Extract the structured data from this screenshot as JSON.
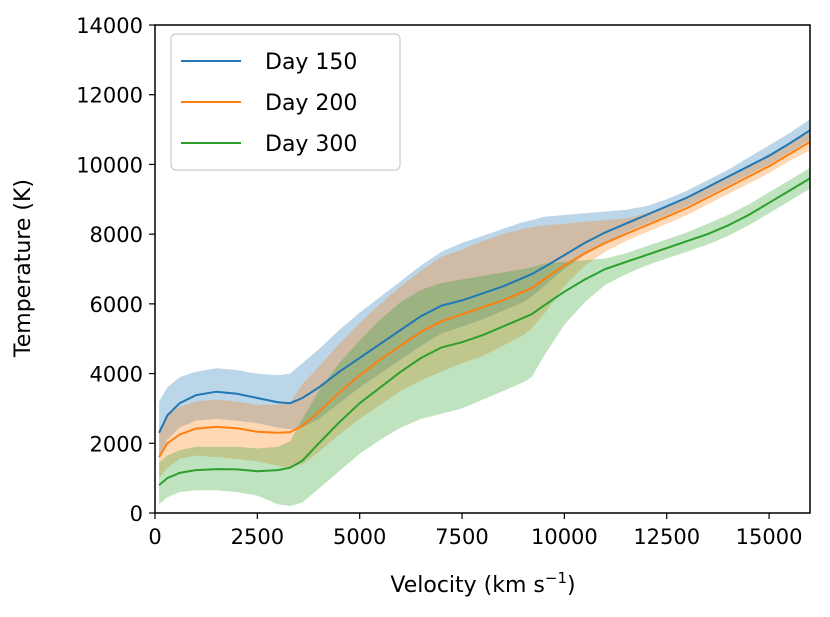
{
  "chart_data": {
    "type": "line",
    "title": "",
    "xlabel": "Velocity (km s",
    "xlabel_sup": "−1",
    "xlabel_close": ")",
    "ylabel": "Temperature (K)",
    "xlim": [
      0,
      16000
    ],
    "ylim": [
      0,
      14000
    ],
    "xticks": [
      0,
      2500,
      5000,
      7500,
      10000,
      12500,
      15000
    ],
    "yticks": [
      0,
      2000,
      4000,
      6000,
      8000,
      10000,
      12000,
      14000
    ],
    "legend_position": "top-left",
    "x": [
      100,
      300,
      600,
      1000,
      1500,
      2000,
      2500,
      3000,
      3300,
      3600,
      4000,
      4500,
      5000,
      5500,
      6000,
      6500,
      7000,
      7500,
      8000,
      8500,
      9000,
      9200,
      9500,
      10000,
      10500,
      11000,
      11500,
      12000,
      12500,
      13000,
      13500,
      14000,
      14500,
      15000,
      15500,
      16000
    ],
    "series": [
      {
        "name": "Day 150",
        "color": "#1f77b4",
        "values": [
          2300,
          2800,
          3150,
          3380,
          3480,
          3420,
          3300,
          3180,
          3150,
          3300,
          3600,
          4050,
          4450,
          4850,
          5250,
          5650,
          5950,
          6100,
          6300,
          6500,
          6750,
          6850,
          7050,
          7400,
          7750,
          8050,
          8300,
          8550,
          8800,
          9050,
          9350,
          9650,
          9950,
          10250,
          10600,
          10980
        ],
        "lower": [
          1600,
          2100,
          2450,
          2650,
          2700,
          2650,
          2580,
          2450,
          2400,
          2450,
          2700,
          3150,
          3600,
          4000,
          4400,
          4800,
          5150,
          5350,
          5550,
          5800,
          6050,
          6200,
          6500,
          7000,
          7400,
          7750,
          8050,
          8300,
          8550,
          8800,
          9100,
          9400,
          9700,
          10000,
          10350,
          10700
        ],
        "upper": [
          3200,
          3600,
          3900,
          4050,
          4150,
          4100,
          4000,
          3950,
          4000,
          4300,
          4700,
          5250,
          5750,
          6200,
          6650,
          7100,
          7500,
          7750,
          7950,
          8150,
          8350,
          8400,
          8500,
          8550,
          8600,
          8650,
          8700,
          8800,
          9000,
          9250,
          9550,
          9850,
          10200,
          10550,
          10900,
          11300
        ]
      },
      {
        "name": "Day 200",
        "color": "#ff7f0e",
        "values": [
          1600,
          2000,
          2250,
          2420,
          2470,
          2430,
          2330,
          2300,
          2320,
          2500,
          2900,
          3450,
          3950,
          4400,
          4800,
          5200,
          5500,
          5700,
          5900,
          6100,
          6350,
          6450,
          6700,
          7100,
          7450,
          7750,
          8000,
          8250,
          8500,
          8750,
          9050,
          9350,
          9650,
          9950,
          10300,
          10650
        ],
        "lower": [
          1000,
          1300,
          1550,
          1650,
          1600,
          1550,
          1480,
          1350,
          1300,
          1400,
          1750,
          2250,
          2700,
          3100,
          3500,
          3800,
          4050,
          4300,
          4500,
          4800,
          5100,
          5300,
          5700,
          6500,
          7100,
          7500,
          7800,
          8050,
          8300,
          8550,
          8850,
          9150,
          9450,
          9750,
          10100,
          10400
        ],
        "upper": [
          2400,
          2800,
          3050,
          3200,
          3250,
          3200,
          3100,
          3100,
          3150,
          3700,
          4200,
          4850,
          5450,
          6000,
          6500,
          6950,
          7350,
          7550,
          7800,
          8000,
          8150,
          8200,
          8250,
          8300,
          8350,
          8400,
          8450,
          8600,
          8800,
          9050,
          9350,
          9650,
          9950,
          10250,
          10600,
          10950
        ]
      },
      {
        "name": "Day 300",
        "color": "#2ca02c",
        "values": [
          800,
          1000,
          1150,
          1230,
          1260,
          1250,
          1200,
          1230,
          1300,
          1500,
          2000,
          2600,
          3150,
          3600,
          4050,
          4450,
          4750,
          4900,
          5100,
          5350,
          5600,
          5700,
          5950,
          6350,
          6700,
          7000,
          7200,
          7400,
          7600,
          7800,
          8000,
          8250,
          8550,
          8900,
          9250,
          9600
        ],
        "lower": [
          250,
          450,
          600,
          650,
          650,
          600,
          500,
          250,
          200,
          300,
          700,
          1200,
          1700,
          2100,
          2450,
          2700,
          2850,
          3000,
          3250,
          3500,
          3750,
          3900,
          4500,
          5400,
          6050,
          6550,
          6850,
          7100,
          7300,
          7500,
          7700,
          7950,
          8250,
          8600,
          8950,
          9300
        ],
        "upper": [
          1450,
          1650,
          1800,
          1900,
          1900,
          1900,
          1850,
          1900,
          2050,
          2700,
          3500,
          4300,
          4950,
          5550,
          6050,
          6400,
          6600,
          6700,
          6800,
          6900,
          7000,
          7050,
          7150,
          7200,
          7250,
          7300,
          7450,
          7650,
          7850,
          8050,
          8300,
          8550,
          8850,
          9200,
          9550,
          9900
        ]
      }
    ]
  }
}
